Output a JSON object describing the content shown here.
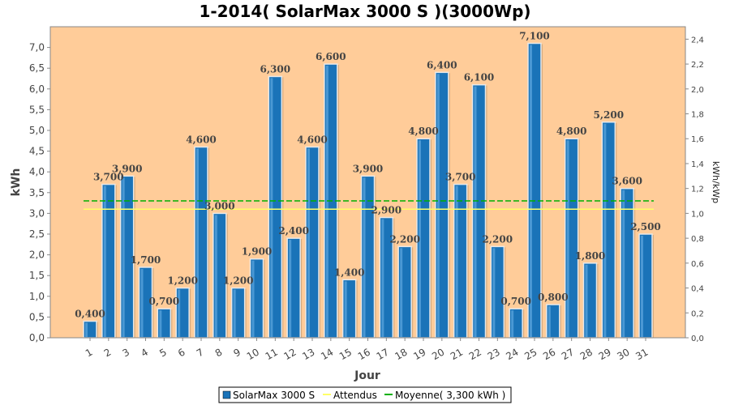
{
  "chart_data": {
    "type": "bar",
    "title": "1-2014( SolarMax 3000 S )(3000Wp)",
    "xlabel": "Jour",
    "ylabel": "kWh",
    "ylabel_right": "kWh/kWp",
    "categories": [
      "1",
      "2",
      "3",
      "4",
      "5",
      "6",
      "7",
      "8",
      "9",
      "10",
      "11",
      "12",
      "13",
      "14",
      "15",
      "16",
      "17",
      "18",
      "19",
      "20",
      "21",
      "22",
      "23",
      "24",
      "25",
      "26",
      "27",
      "28",
      "29",
      "30",
      "31"
    ],
    "series": [
      {
        "name": "SolarMax 3000 S",
        "values": [
          0.4,
          3.7,
          3.9,
          1.7,
          0.7,
          1.2,
          4.6,
          3.0,
          1.2,
          1.9,
          6.3,
          2.4,
          4.6,
          6.6,
          1.4,
          3.9,
          2.9,
          2.2,
          4.8,
          6.4,
          3.7,
          6.1,
          2.2,
          0.7,
          7.1,
          0.8,
          4.8,
          1.8,
          5.2,
          3.6,
          2.5
        ],
        "labels": [
          "0,400",
          "3,700",
          "3,900",
          "1,700",
          "0,700",
          "1,200",
          "4,600",
          "3,000",
          "1,200",
          "1,900",
          "6,300",
          "2,400",
          "4,600",
          "6,600",
          "1,400",
          "3,900",
          "2,900",
          "2,200",
          "4,800",
          "6,400",
          "3,700",
          "6,100",
          "2,200",
          "0,700",
          "7,100",
          "0,800",
          "4,800",
          "1,800",
          "5,200",
          "3,600",
          "2,500"
        ],
        "color": "#1a73b8"
      }
    ],
    "expected_line": {
      "name": "Attendus",
      "value": 3.1,
      "color": "#ffff66"
    },
    "average_line": {
      "name": "Moyenne( 3,300 kWh )",
      "value": 3.3,
      "color": "#00b000"
    },
    "ylim": [
      0,
      7.5
    ],
    "yticks": [
      "0,0",
      "0,5",
      "1,0",
      "1,5",
      "2,0",
      "2,5",
      "3,0",
      "3,5",
      "4,0",
      "4,5",
      "5,0",
      "5,5",
      "6,0",
      "6,5",
      "7,0"
    ],
    "ylim_right": [
      0,
      2.5
    ],
    "yticks_right": [
      "0,0",
      "0,2",
      "0,4",
      "0,6",
      "0,8",
      "1,0",
      "1,2",
      "1,4",
      "1,6",
      "1,8",
      "2,0",
      "2,2",
      "2,4"
    ],
    "plot_background": "#ffcc99",
    "legend_position": "bottom-center",
    "grid": false
  }
}
